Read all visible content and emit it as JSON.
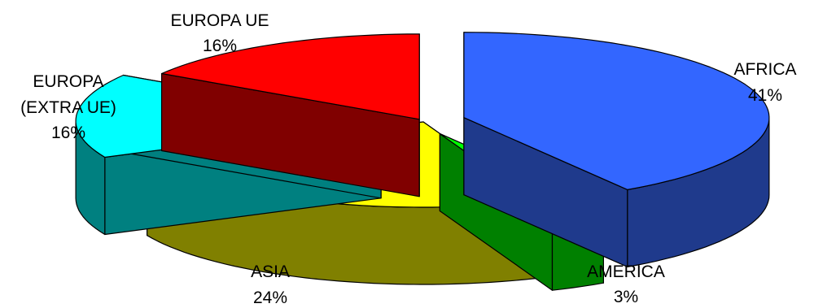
{
  "chart_data": {
    "type": "pie",
    "title": "",
    "style": "3d-exploded",
    "slices": [
      {
        "label": "AFRICA",
        "value": 41,
        "value_label": "41%",
        "color": "#3366FF",
        "side_color": "#1F3A8C"
      },
      {
        "label": "AMERICA",
        "value": 3,
        "value_label": "3%",
        "color": "#00FF00",
        "side_color": "#008000"
      },
      {
        "label": "ASIA",
        "value": 24,
        "value_label": "24%",
        "color": "#FFFF00",
        "side_color": "#808000"
      },
      {
        "label": "EUROPA (EXTRA UE)",
        "label_lines": [
          "EUROPA",
          "(EXTRA UE)"
        ],
        "value": 16,
        "value_label": "16%",
        "color": "#00FFFF",
        "side_color": "#008080"
      },
      {
        "label": "EUROPA UE",
        "value": 16,
        "value_label": "16%",
        "color": "#FF0000",
        "side_color": "#800000"
      }
    ]
  }
}
